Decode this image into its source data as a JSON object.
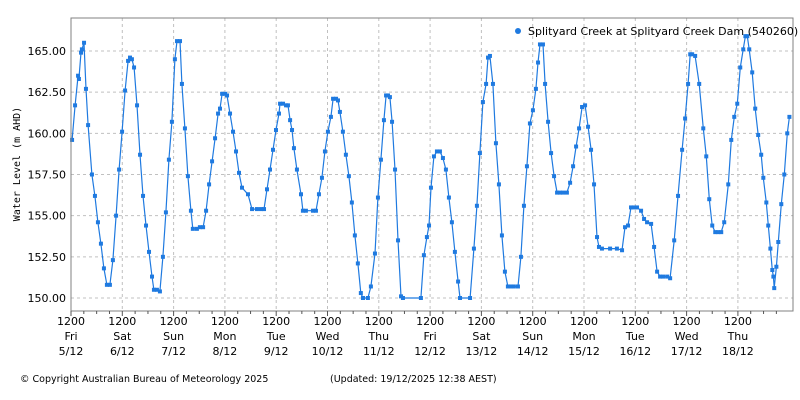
{
  "footer": {
    "copyright": "© Copyright Australian Bureau of Meteorology 2025",
    "updated": "(Updated: 19/12/2025 12:38 AEST)"
  },
  "chart_data": {
    "type": "line",
    "title": "",
    "xlabel": "",
    "ylabel": "Water Level (m AHD)",
    "ylim": [
      149.3,
      167.0
    ],
    "yticks": [
      150.0,
      152.5,
      155.0,
      157.5,
      160.0,
      162.5,
      165.0
    ],
    "ytick_labels": [
      "150.00",
      "152.50",
      "155.00",
      "157.50",
      "160.00",
      "162.50",
      "165.00"
    ],
    "x_unit": "hours since Fri 5/12 12:00",
    "xlim": [
      0,
      338
    ],
    "xticks": [
      {
        "hour": 0,
        "time": "1200",
        "day": "Fri",
        "date": "5/12"
      },
      {
        "hour": 24,
        "time": "1200",
        "day": "Sat",
        "date": "6/12"
      },
      {
        "hour": 48,
        "time": "1200",
        "day": "Sun",
        "date": "7/12"
      },
      {
        "hour": 72,
        "time": "1200",
        "day": "Mon",
        "date": "8/12"
      },
      {
        "hour": 96,
        "time": "1200",
        "day": "Tue",
        "date": "9/12"
      },
      {
        "hour": 120,
        "time": "1200",
        "day": "Wed",
        "date": "10/12"
      },
      {
        "hour": 144,
        "time": "1200",
        "day": "Thu",
        "date": "11/12"
      },
      {
        "hour": 168,
        "time": "1200",
        "day": "Fri",
        "date": "12/12"
      },
      {
        "hour": 192,
        "time": "1200",
        "day": "Sat",
        "date": "13/12"
      },
      {
        "hour": 216,
        "time": "1200",
        "day": "Sun",
        "date": "14/12"
      },
      {
        "hour": 240,
        "time": "1200",
        "day": "Mon",
        "date": "15/12"
      },
      {
        "hour": 264,
        "time": "1200",
        "day": "Tue",
        "date": "16/12"
      },
      {
        "hour": 288,
        "time": "1200",
        "day": "Wed",
        "date": "17/12"
      },
      {
        "hour": 312,
        "time": "1200",
        "day": "Thu",
        "date": "18/12"
      }
    ],
    "minor_tick_hours": 6,
    "grid": true,
    "legend_position": "top-right",
    "series": [
      {
        "name": "Splityard Creek at Splityard Creek Dam (540260)",
        "color": "#1f7ae0",
        "points": [
          [
            0.5,
            159.6
          ],
          [
            1.9,
            161.7
          ],
          [
            3.3,
            163.5
          ],
          [
            3.7,
            163.3
          ],
          [
            4.7,
            164.9
          ],
          [
            5.1,
            165.1
          ],
          [
            6.1,
            165.5
          ],
          [
            7.0,
            162.7
          ],
          [
            8.0,
            160.5
          ],
          [
            9.8,
            157.5
          ],
          [
            11.2,
            156.2
          ],
          [
            12.6,
            154.6
          ],
          [
            14.0,
            153.3
          ],
          [
            15.4,
            151.8
          ],
          [
            16.8,
            150.8
          ],
          [
            18.2,
            150.8
          ],
          [
            19.6,
            152.3
          ],
          [
            21.1,
            155.0
          ],
          [
            22.5,
            157.8
          ],
          [
            23.9,
            160.1
          ],
          [
            25.3,
            162.6
          ],
          [
            26.7,
            164.4
          ],
          [
            27.6,
            164.6
          ],
          [
            28.5,
            164.5
          ],
          [
            29.5,
            164.0
          ],
          [
            30.9,
            161.7
          ],
          [
            32.3,
            158.7
          ],
          [
            33.7,
            156.2
          ],
          [
            35.1,
            154.4
          ],
          [
            36.5,
            152.8
          ],
          [
            37.9,
            151.3
          ],
          [
            38.8,
            150.5
          ],
          [
            40.2,
            150.5
          ],
          [
            41.6,
            150.4
          ],
          [
            43.0,
            152.5
          ],
          [
            44.4,
            155.2
          ],
          [
            45.8,
            158.4
          ],
          [
            47.2,
            160.7
          ],
          [
            48.6,
            164.5
          ],
          [
            49.6,
            165.6
          ],
          [
            51.0,
            165.6
          ],
          [
            51.9,
            163.0
          ],
          [
            53.3,
            160.3
          ],
          [
            54.7,
            157.4
          ],
          [
            56.1,
            155.3
          ],
          [
            57.0,
            154.2
          ],
          [
            58.9,
            154.2
          ],
          [
            60.3,
            154.3
          ],
          [
            61.8,
            154.3
          ],
          [
            63.2,
            155.3
          ],
          [
            64.6,
            156.9
          ],
          [
            66.0,
            158.3
          ],
          [
            67.4,
            159.7
          ],
          [
            68.8,
            161.2
          ],
          [
            69.7,
            161.5
          ],
          [
            70.7,
            162.4
          ],
          [
            72.1,
            162.4
          ],
          [
            73.0,
            162.3
          ],
          [
            74.4,
            161.2
          ],
          [
            75.8,
            160.1
          ],
          [
            77.2,
            158.9
          ],
          [
            78.6,
            157.6
          ],
          [
            80.0,
            156.7
          ],
          [
            82.8,
            156.3
          ],
          [
            84.7,
            155.4
          ],
          [
            87.0,
            155.4
          ],
          [
            88.9,
            155.4
          ],
          [
            90.3,
            155.4
          ],
          [
            91.7,
            156.6
          ],
          [
            93.1,
            157.8
          ],
          [
            94.5,
            159.0
          ],
          [
            95.9,
            160.2
          ],
          [
            97.3,
            161.2
          ],
          [
            97.8,
            161.8
          ],
          [
            99.2,
            161.8
          ],
          [
            100.6,
            161.7
          ],
          [
            101.5,
            161.7
          ],
          [
            102.5,
            160.8
          ],
          [
            103.4,
            160.2
          ],
          [
            104.3,
            159.1
          ],
          [
            105.7,
            157.8
          ],
          [
            107.6,
            156.3
          ],
          [
            108.5,
            155.3
          ],
          [
            109.9,
            155.3
          ],
          [
            113.2,
            155.3
          ],
          [
            114.6,
            155.3
          ],
          [
            116.0,
            156.3
          ],
          [
            117.4,
            157.3
          ],
          [
            118.8,
            158.9
          ],
          [
            120.2,
            160.1
          ],
          [
            121.6,
            161.0
          ],
          [
            122.6,
            162.1
          ],
          [
            124.0,
            162.1
          ],
          [
            124.9,
            162.0
          ],
          [
            125.8,
            161.3
          ],
          [
            127.2,
            160.1
          ],
          [
            128.6,
            158.7
          ],
          [
            130.0,
            157.4
          ],
          [
            131.4,
            155.8
          ],
          [
            132.8,
            153.8
          ],
          [
            134.2,
            152.1
          ],
          [
            135.6,
            150.3
          ],
          [
            136.6,
            150.0
          ],
          [
            138.9,
            150.0
          ],
          [
            140.3,
            150.7
          ],
          [
            142.2,
            152.7
          ],
          [
            143.6,
            156.1
          ],
          [
            145.0,
            158.4
          ],
          [
            146.4,
            160.8
          ],
          [
            147.4,
            162.3
          ],
          [
            148.3,
            162.3
          ],
          [
            149.2,
            162.2
          ],
          [
            150.2,
            160.7
          ],
          [
            151.6,
            157.8
          ],
          [
            153.0,
            153.5
          ],
          [
            154.4,
            150.1
          ],
          [
            155.3,
            150.0
          ],
          [
            163.7,
            150.0
          ],
          [
            165.1,
            152.6
          ],
          [
            166.5,
            153.7
          ],
          [
            167.5,
            154.4
          ],
          [
            168.4,
            156.7
          ],
          [
            169.8,
            158.6
          ],
          [
            171.2,
            158.9
          ],
          [
            172.6,
            158.9
          ],
          [
            174.0,
            158.5
          ],
          [
            175.4,
            157.8
          ],
          [
            176.8,
            156.1
          ],
          [
            178.2,
            154.6
          ],
          [
            179.6,
            152.8
          ],
          [
            181.1,
            151.0
          ],
          [
            182.0,
            150.0
          ],
          [
            186.7,
            150.0
          ],
          [
            188.5,
            153.0
          ],
          [
            189.9,
            155.6
          ],
          [
            191.3,
            158.8
          ],
          [
            192.7,
            161.9
          ],
          [
            194.2,
            163.0
          ],
          [
            195.1,
            164.6
          ],
          [
            196.0,
            164.7
          ],
          [
            197.4,
            163.0
          ],
          [
            198.8,
            159.4
          ],
          [
            200.2,
            156.9
          ],
          [
            201.6,
            153.8
          ],
          [
            203.0,
            151.6
          ],
          [
            204.4,
            150.7
          ],
          [
            205.8,
            150.7
          ],
          [
            207.2,
            150.7
          ],
          [
            209.1,
            150.7
          ],
          [
            210.5,
            152.5
          ],
          [
            211.9,
            155.6
          ],
          [
            213.3,
            158.0
          ],
          [
            214.7,
            160.6
          ],
          [
            216.1,
            161.4
          ],
          [
            217.5,
            162.7
          ],
          [
            218.5,
            164.3
          ],
          [
            219.4,
            165.4
          ],
          [
            220.8,
            165.4
          ],
          [
            221.8,
            163.0
          ],
          [
            223.2,
            160.7
          ],
          [
            224.6,
            158.8
          ],
          [
            226.0,
            157.4
          ],
          [
            227.4,
            156.4
          ],
          [
            228.8,
            156.4
          ],
          [
            230.2,
            156.4
          ],
          [
            232.0,
            156.4
          ],
          [
            233.5,
            157.0
          ],
          [
            234.9,
            158.0
          ],
          [
            236.3,
            159.2
          ],
          [
            237.7,
            160.3
          ],
          [
            239.1,
            161.6
          ],
          [
            240.5,
            161.7
          ],
          [
            241.9,
            160.4
          ],
          [
            243.3,
            159.0
          ],
          [
            244.7,
            156.9
          ],
          [
            246.1,
            153.7
          ],
          [
            247.0,
            153.1
          ],
          [
            248.4,
            153.0
          ],
          [
            252.2,
            153.0
          ],
          [
            255.4,
            153.0
          ],
          [
            257.8,
            152.9
          ],
          [
            259.2,
            154.3
          ],
          [
            260.6,
            154.4
          ],
          [
            262.0,
            155.5
          ],
          [
            263.4,
            155.5
          ],
          [
            264.8,
            155.5
          ],
          [
            266.7,
            155.3
          ],
          [
            268.1,
            154.8
          ],
          [
            269.5,
            154.6
          ],
          [
            271.4,
            154.5
          ],
          [
            272.8,
            153.1
          ],
          [
            274.2,
            151.6
          ],
          [
            275.6,
            151.3
          ],
          [
            277.0,
            151.3
          ],
          [
            278.9,
            151.3
          ],
          [
            280.3,
            151.2
          ],
          [
            282.2,
            153.5
          ],
          [
            284.0,
            156.2
          ],
          [
            285.9,
            159.0
          ],
          [
            287.3,
            160.9
          ],
          [
            288.7,
            163.0
          ],
          [
            289.7,
            164.8
          ],
          [
            290.6,
            164.8
          ],
          [
            292.0,
            164.7
          ],
          [
            293.9,
            163.0
          ],
          [
            295.8,
            160.3
          ],
          [
            297.2,
            158.6
          ],
          [
            298.6,
            156.0
          ],
          [
            300.0,
            154.4
          ],
          [
            301.4,
            154.0
          ],
          [
            302.8,
            154.0
          ],
          [
            304.2,
            154.0
          ],
          [
            305.6,
            154.6
          ],
          [
            307.5,
            156.9
          ],
          [
            308.9,
            159.6
          ],
          [
            310.3,
            161.0
          ],
          [
            311.7,
            161.8
          ],
          [
            313.1,
            164.0
          ],
          [
            314.5,
            165.1
          ],
          [
            315.5,
            165.9
          ],
          [
            316.4,
            165.9
          ],
          [
            317.3,
            165.1
          ],
          [
            318.7,
            163.7
          ],
          [
            320.1,
            161.5
          ],
          [
            321.5,
            159.9
          ],
          [
            322.9,
            158.7
          ],
          [
            323.9,
            157.3
          ],
          [
            325.3,
            155.8
          ],
          [
            326.2,
            154.4
          ],
          [
            327.2,
            153.0
          ],
          [
            328.1,
            151.7
          ],
          [
            328.6,
            151.3
          ],
          [
            329.0,
            150.6
          ],
          [
            330.0,
            151.9
          ],
          [
            330.9,
            153.4
          ],
          [
            332.3,
            155.7
          ],
          [
            333.7,
            157.5
          ],
          [
            335.1,
            160.0
          ],
          [
            336.1,
            161.0
          ]
        ]
      }
    ]
  }
}
